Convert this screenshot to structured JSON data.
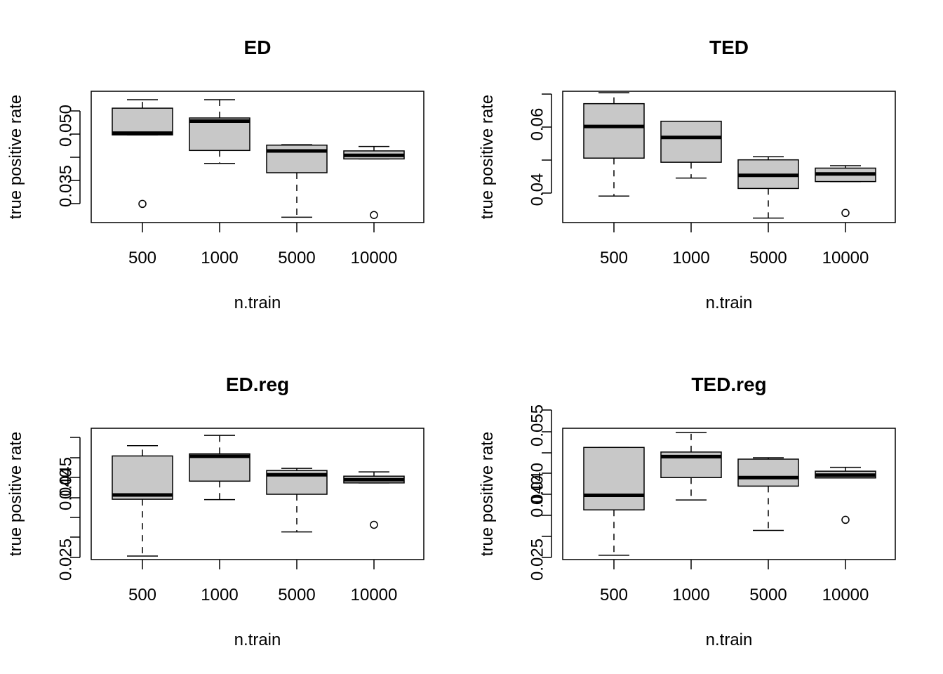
{
  "chart_data": [
    {
      "type": "boxplot",
      "title": "ED",
      "xlabel": "n.train",
      "ylabel": "true positive rate",
      "categories": [
        "500",
        "1000",
        "5000",
        "10000"
      ],
      "yticks": [
        "0.035",
        "0.050"
      ],
      "ylim": [
        0.029,
        0.0585
      ],
      "boxes": [
        {
          "category": "500",
          "whisker_low": 0.0487,
          "q1": 0.0487,
          "median": 0.0491,
          "q3": 0.0547,
          "whisker_high": 0.0566,
          "outliers": [
            0.0332
          ]
        },
        {
          "category": "1000",
          "whisker_low": 0.0423,
          "q1": 0.0452,
          "median": 0.0518,
          "q3": 0.0525,
          "whisker_high": 0.0566,
          "outliers": []
        },
        {
          "category": "5000",
          "whisker_low": 0.0302,
          "q1": 0.0402,
          "median": 0.0451,
          "q3": 0.0464,
          "whisker_high": 0.0465,
          "outliers": []
        },
        {
          "category": "10000",
          "whisker_low": 0.0433,
          "q1": 0.0433,
          "median": 0.0441,
          "q3": 0.0451,
          "whisker_high": 0.0461,
          "outliers": [
            0.0307
          ]
        }
      ]
    },
    {
      "type": "boxplot",
      "title": "TED",
      "xlabel": "n.train",
      "ylabel": "true positive rate",
      "categories": [
        "500",
        "1000",
        "5000",
        "10000"
      ],
      "yticks": [
        "0.04",
        "0.06"
      ],
      "ylim": [
        0.0313,
        0.0694
      ],
      "boxes": [
        {
          "category": "500",
          "whisker_low": 0.039,
          "q1": 0.05,
          "median": 0.0592,
          "q3": 0.0658,
          "whisker_high": 0.069,
          "outliers": []
        },
        {
          "category": "1000",
          "whisker_low": 0.0442,
          "q1": 0.0488,
          "median": 0.056,
          "q3": 0.0607,
          "whisker_high": 0.0607,
          "outliers": []
        },
        {
          "category": "5000",
          "whisker_low": 0.0326,
          "q1": 0.0412,
          "median": 0.045,
          "q3": 0.0495,
          "whisker_high": 0.0504,
          "outliers": []
        },
        {
          "category": "10000",
          "whisker_low": 0.0432,
          "q1": 0.0432,
          "median": 0.0454,
          "q3": 0.0471,
          "whisker_high": 0.0478,
          "outliers": [
            0.0341
          ]
        }
      ]
    },
    {
      "type": "boxplot",
      "title": "ED.reg",
      "xlabel": "n.train",
      "ylabel": "true positive rate",
      "categories": [
        "500",
        "1000",
        "5000",
        "10000"
      ],
      "yticks": [
        "0.025",
        "0.040",
        "0.045"
      ],
      "ytick_count": 7,
      "boxes": [
        {
          "category": "500",
          "whisker_low": 0.0225,
          "q1": 0.0385,
          "median": 0.0397,
          "q3": 0.0507,
          "whisker_high": 0.0536,
          "outliers": []
        },
        {
          "category": "1000",
          "whisker_low": 0.0384,
          "q1": 0.0436,
          "median": 0.0506,
          "q3": 0.0513,
          "whisker_high": 0.0565,
          "outliers": []
        },
        {
          "category": "5000",
          "whisker_low": 0.0293,
          "q1": 0.0399,
          "median": 0.0454,
          "q3": 0.0466,
          "whisker_high": 0.0472,
          "outliers": []
        },
        {
          "category": "10000",
          "whisker_low": 0.0431,
          "q1": 0.0431,
          "median": 0.044,
          "q3": 0.045,
          "whisker_high": 0.0462,
          "outliers": [
            0.0313
          ]
        }
      ]
    },
    {
      "type": "boxplot",
      "title": "TED.reg",
      "xlabel": "n.train",
      "ylabel": "true positive rate",
      "categories": [
        "500",
        "1000",
        "5000",
        "10000"
      ],
      "yticks": [
        "0.025",
        "0.040",
        "0.040",
        "0.055"
      ],
      "ytick_count": 8,
      "boxes": [
        {
          "category": "500",
          "whisker_low": 0.0227,
          "q1": 0.0355,
          "median": 0.0396,
          "q3": 0.0531,
          "whisker_high": 0.0531,
          "outliers": []
        },
        {
          "category": "1000",
          "whisker_low": 0.0383,
          "q1": 0.0446,
          "median": 0.0505,
          "q3": 0.0518,
          "whisker_high": 0.0573,
          "outliers": []
        },
        {
          "category": "5000",
          "whisker_low": 0.0297,
          "q1": 0.0422,
          "median": 0.0446,
          "q3": 0.0498,
          "whisker_high": 0.0502,
          "outliers": []
        },
        {
          "category": "10000",
          "whisker_low": 0.0445,
          "q1": 0.0445,
          "median": 0.0453,
          "q3": 0.0464,
          "whisker_high": 0.0475,
          "outliers": [
            0.0327
          ]
        }
      ]
    }
  ]
}
